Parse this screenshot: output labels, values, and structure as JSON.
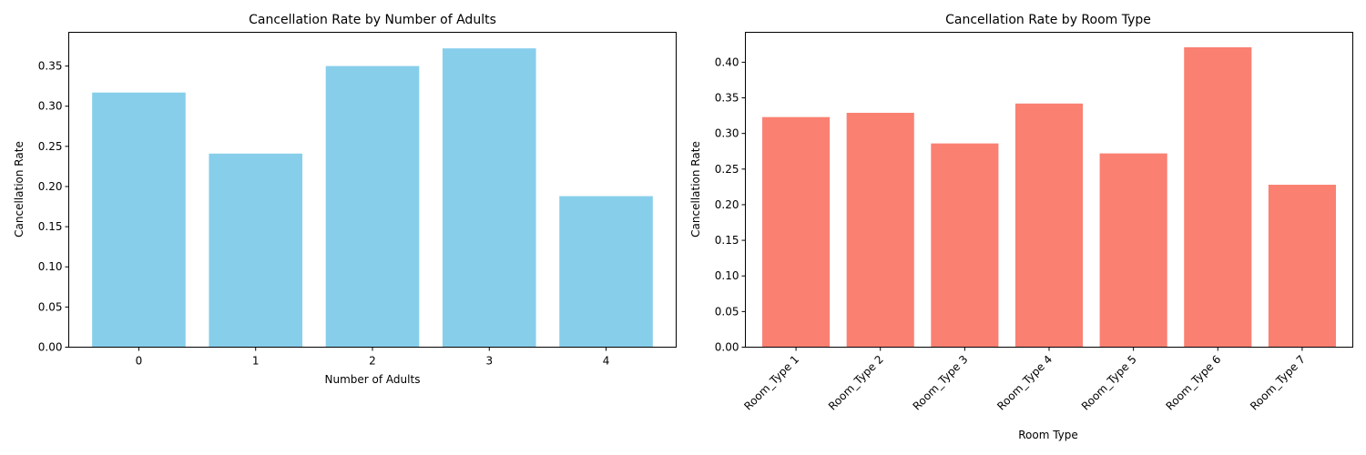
{
  "chart_data": [
    {
      "type": "bar",
      "title": "Cancellation Rate by Number of Adults",
      "xlabel": "Number of Adults",
      "ylabel": "Cancellation Rate",
      "categories": [
        "0",
        "1",
        "2",
        "3",
        "4"
      ],
      "values": [
        0.317,
        0.241,
        0.35,
        0.372,
        0.188
      ],
      "ylim": [
        0,
        0.392
      ],
      "yticks": [
        "0.00",
        "0.05",
        "0.10",
        "0.15",
        "0.20",
        "0.25",
        "0.30",
        "0.35"
      ],
      "ytick_values": [
        0,
        0.05,
        0.1,
        0.15,
        0.2,
        0.25,
        0.3,
        0.35
      ],
      "color": "#87CEEB",
      "grid": false
    },
    {
      "type": "bar",
      "title": "Cancellation Rate by Room Type",
      "xlabel": "Room Type",
      "ylabel": "Cancellation Rate",
      "categories": [
        "Room_Type 1",
        "Room_Type 2",
        "Room_Type 3",
        "Room_Type 4",
        "Room_Type 5",
        "Room_Type 6",
        "Room_Type 7"
      ],
      "values": [
        0.323,
        0.329,
        0.286,
        0.342,
        0.272,
        0.421,
        0.228
      ],
      "ylim": [
        0,
        0.442
      ],
      "yticks": [
        "0.00",
        "0.05",
        "0.10",
        "0.15",
        "0.20",
        "0.25",
        "0.30",
        "0.35",
        "0.40"
      ],
      "ytick_values": [
        0,
        0.05,
        0.1,
        0.15,
        0.2,
        0.25,
        0.3,
        0.35,
        0.4
      ],
      "color": "#FA8072",
      "grid": false
    }
  ]
}
